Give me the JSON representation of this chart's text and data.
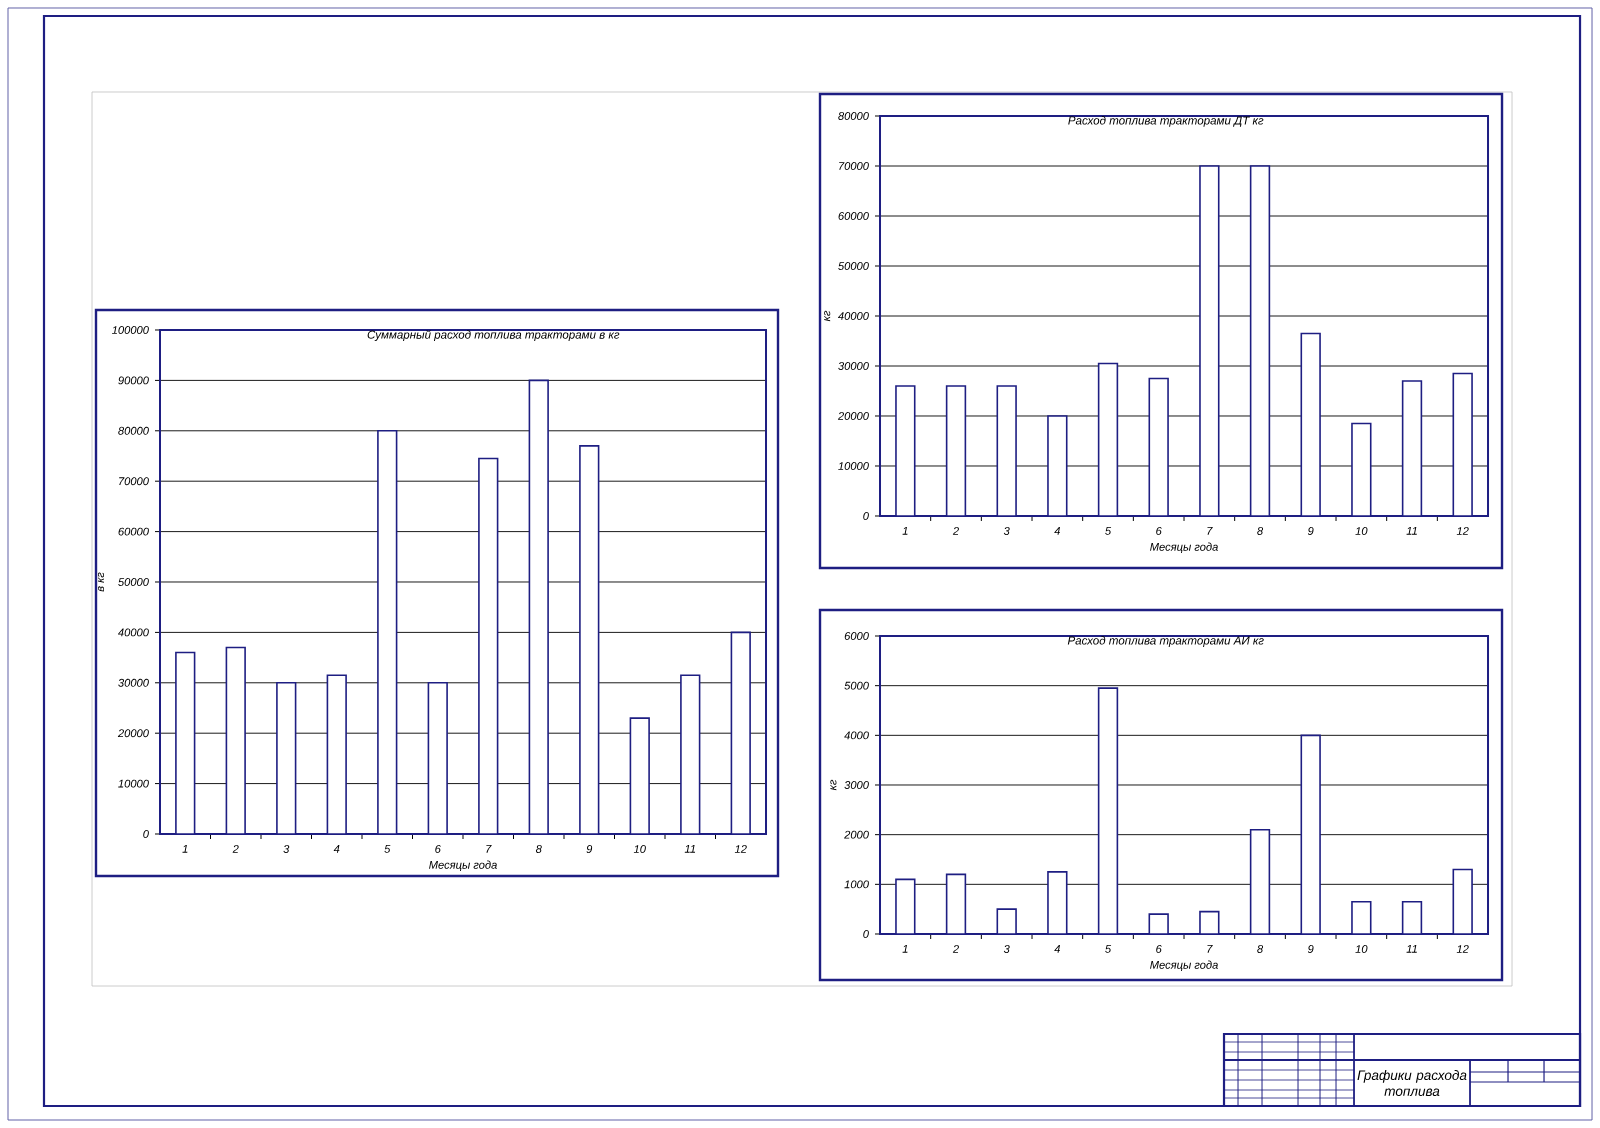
{
  "chart_data": [
    {
      "type": "bar",
      "title": "Суммарный расход топлива тракторами в кг",
      "xlabel": "Месяцы года",
      "ylabel": "в кг",
      "categories": [
        "1",
        "2",
        "3",
        "4",
        "5",
        "6",
        "7",
        "8",
        "9",
        "10",
        "11",
        "12"
      ],
      "values": [
        36000,
        37000,
        30000,
        31500,
        80000,
        30000,
        74500,
        90000,
        77000,
        23000,
        31500,
        40000
      ],
      "color": "#ffffff",
      "ylim": [
        0,
        100000
      ],
      "yticks": [
        0,
        10000,
        20000,
        30000,
        40000,
        50000,
        60000,
        70000,
        80000,
        90000,
        100000
      ],
      "grid": "y"
    },
    {
      "type": "bar",
      "title": "Расход топлива тракторами ДТ кг",
      "xlabel": "Месяцы года",
      "ylabel": "кг",
      "categories": [
        "1",
        "2",
        "3",
        "4",
        "5",
        "6",
        "7",
        "8",
        "9",
        "10",
        "11",
        "12"
      ],
      "values": [
        26000,
        26000,
        26000,
        20000,
        30500,
        27500,
        70000,
        70000,
        36500,
        18500,
        27000,
        28500
      ],
      "color": "#ffffff",
      "ylim": [
        0,
        80000
      ],
      "yticks": [
        0,
        10000,
        20000,
        30000,
        40000,
        50000,
        60000,
        70000,
        80000
      ],
      "grid": "y"
    },
    {
      "type": "bar",
      "title": "Расход топлива тракторами АИ кг",
      "xlabel": "Месяцы года",
      "ylabel": "кг",
      "categories": [
        "1",
        "2",
        "3",
        "4",
        "5",
        "6",
        "7",
        "8",
        "9",
        "10",
        "11",
        "12"
      ],
      "values": [
        1100,
        1200,
        500,
        1250,
        4950,
        400,
        450,
        2100,
        4000,
        650,
        650,
        1300
      ],
      "color": "#ffffff",
      "ylim": [
        0,
        6000
      ],
      "yticks": [
        0,
        1000,
        2000,
        3000,
        4000,
        5000,
        6000
      ],
      "grid": "y"
    },
    {
      "type": "other",
      "title": "Графики расхода топлива"
    }
  ]
}
